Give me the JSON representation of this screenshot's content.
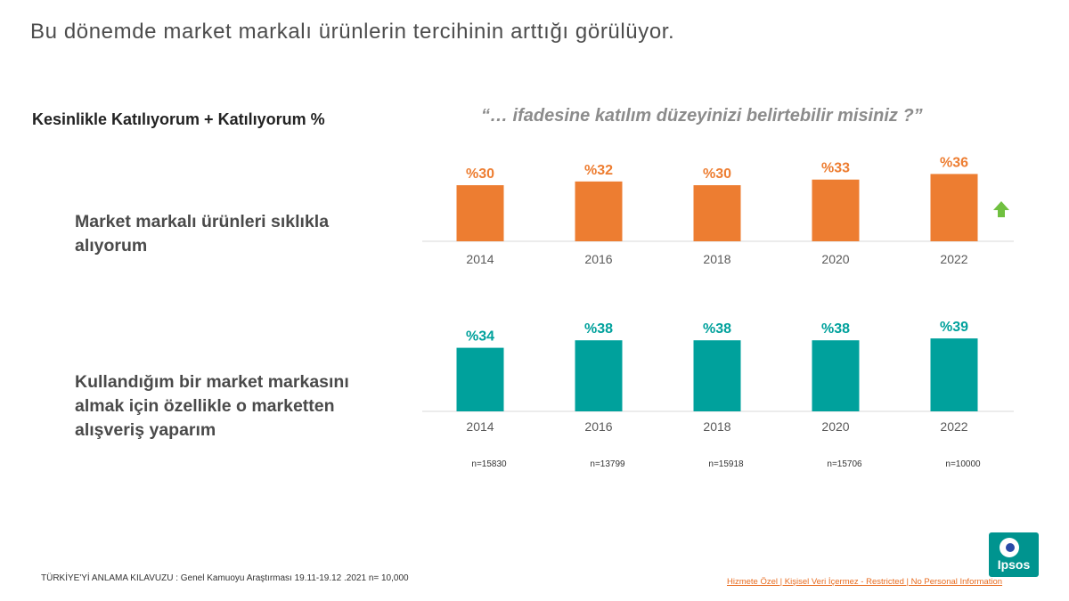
{
  "title": "Bu dönemde market markalı ürünlerin tercihinin arttığı görülüyor.",
  "measure_label": "Kesinlikle Katılıyorum + Katılıyorum %",
  "question": "“… ifadesine katılım düzeyinizi belirtebilir misiniz ?”",
  "chart_data": [
    {
      "type": "bar",
      "title": "Market markalı ürünleri sıklıkla alıyorum",
      "title_lines": [
        "Market markalı ürünleri sıklıkla",
        "alıyorum"
      ],
      "categories": [
        "2014",
        "2016",
        "2018",
        "2020",
        "2022"
      ],
      "values": [
        30,
        32,
        30,
        33,
        36
      ],
      "value_labels": [
        "%30",
        "%32",
        "%30",
        "%33",
        "%36"
      ],
      "color": "#ed7d31",
      "ylim": [
        0,
        60
      ],
      "trend": "up",
      "trend_color": "#70c040"
    },
    {
      "type": "bar",
      "title": "Kullandığım bir market markasını almak için özellikle o marketten alışveriş yaparım",
      "title_lines": [
        "Kullandığım bir market markasını",
        "almak için özellikle o marketten",
        "alışveriş yaparım"
      ],
      "categories": [
        "2014",
        "2016",
        "2018",
        "2020",
        "2022"
      ],
      "values": [
        34,
        38,
        38,
        38,
        39
      ],
      "value_labels": [
        "%34",
        "%38",
        "%38",
        "%38",
        "%39"
      ],
      "color": "#00a19c",
      "ylim": [
        0,
        60
      ]
    }
  ],
  "sample_sizes": [
    "n=15830",
    "n=13799",
    "n=15918",
    "n=15706",
    "n=10000"
  ],
  "footer": {
    "source": "TÜRKİYE'Yİ ANLAMA KILAVUZU  : Genel Kamuoyu Araştırması 19.11-19.12  .2021 n= 10,000",
    "classification": "Hizmete Özel | Kişisel Veri İçermez - Restricted | No Personal Information"
  },
  "logo": {
    "text": "Ipsos"
  }
}
